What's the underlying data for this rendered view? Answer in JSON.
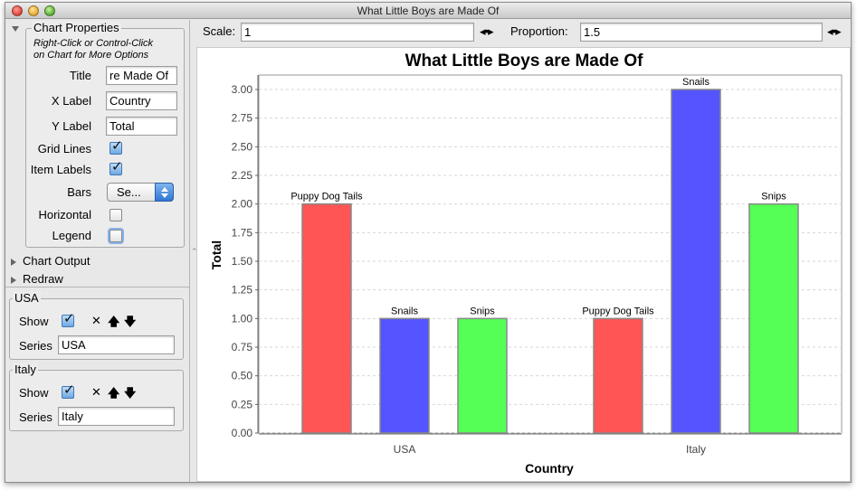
{
  "window": {
    "title": "What Little Boys are Made Of"
  },
  "chart_properties": {
    "header": "Chart Properties",
    "hint_line1": "Right-Click or Control-Click",
    "hint_line2": "on Chart for More Options",
    "title_label": "Title",
    "title_value": "re Made Of",
    "xlabel_label": "X Label",
    "xlabel_value": "Country",
    "ylabel_label": "Y Label",
    "ylabel_value": "Total",
    "gridlines_label": "Grid Lines",
    "gridlines_checked": true,
    "itemlabels_label": "Item Labels",
    "itemlabels_checked": true,
    "bars_label": "Bars",
    "bars_value": "Se...",
    "horizontal_label": "Horizontal",
    "horizontal_checked": false,
    "legend_label": "Legend",
    "legend_checked": false
  },
  "sections": {
    "chart_output": "Chart Output",
    "redraw": "Redraw"
  },
  "series_panels": [
    {
      "header": "USA",
      "show_label": "Show",
      "show_checked": true,
      "series_label": "Series",
      "series_value": "USA",
      "delete_icon": "x-icon",
      "up_icon": "arrow-up-icon",
      "down_icon": "arrow-down-icon"
    },
    {
      "header": "Italy",
      "show_label": "Show",
      "show_checked": true,
      "series_label": "Series",
      "series_value": "Italy",
      "delete_icon": "x-icon",
      "up_icon": "arrow-up-icon",
      "down_icon": "arrow-down-icon"
    }
  ],
  "toolbar": {
    "scale_label": "Scale:",
    "scale_value": "1",
    "proportion_label": "Proportion:",
    "proportion_value": "1.5",
    "stepper_glyph": "◂•▸"
  },
  "chart_data": {
    "type": "bar",
    "title": "What Little Boys are Made Of",
    "xlabel": "Country",
    "ylabel": "Total",
    "categories": [
      "USA",
      "Italy"
    ],
    "series": [
      {
        "name": "Puppy Dog Tails",
        "values": [
          2.0,
          1.0
        ],
        "color": "#ff5555"
      },
      {
        "name": "Snails",
        "values": [
          1.0,
          3.0
        ],
        "color": "#5555ff"
      },
      {
        "name": "Snips",
        "values": [
          1.0,
          2.0
        ],
        "color": "#55ff55"
      }
    ],
    "ylim": [
      0,
      3.0
    ],
    "yticks": [
      "0.00",
      "0.25",
      "0.50",
      "0.75",
      "1.00",
      "1.25",
      "1.50",
      "1.75",
      "2.00",
      "2.25",
      "2.50",
      "2.75",
      "3.00"
    ],
    "grid": true,
    "item_labels": true,
    "legend": false
  }
}
